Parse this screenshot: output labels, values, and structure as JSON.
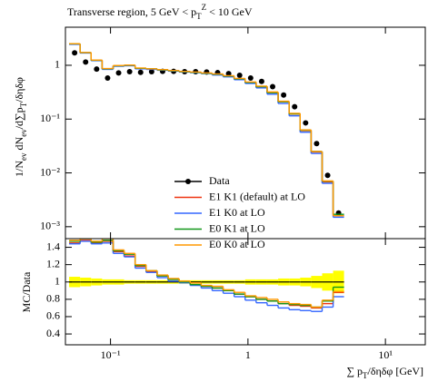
{
  "chart_data": [
    {
      "type": "histogram",
      "title": "Transverse region, 5 GeV < p_{T}^{Z} < 10 GeV",
      "y_label": "1/N_{ev} dN_{ev}/d∑p_{T}/δηδφ",
      "y_log": true,
      "bins": [
        0.05,
        0.0601,
        0.0723,
        0.0869,
        0.1045,
        0.1256,
        0.151,
        0.1816,
        0.2184,
        0.2626,
        0.3157,
        0.3796,
        0.4564,
        0.5488,
        0.6598,
        0.7933,
        0.9538,
        1.1468,
        1.3788,
        1.6578,
        1.9932,
        2.3965,
        2.8814,
        3.4644,
        4.1653,
        5.0
      ],
      "ylim": [
        0.0006,
        5.1
      ],
      "yticks": [
        {
          "value": 0.001,
          "label": "10⁻³"
        },
        {
          "value": 0.01,
          "label": "10⁻²"
        },
        {
          "value": 0.1,
          "label": "10⁻¹"
        },
        1
      ],
      "series": [
        {
          "name": "Data",
          "style": "points",
          "color": "#000000",
          "values": [
            1.7,
            1.15,
            0.85,
            0.58,
            0.72,
            0.76,
            0.74,
            0.76,
            0.77,
            0.77,
            0.76,
            0.76,
            0.75,
            0.73,
            0.7,
            0.65,
            0.58,
            0.5,
            0.4,
            0.28,
            0.17,
            0.085,
            0.035,
            0.009,
            0.0018
          ]
        },
        {
          "name": "E1 K1 (default) at LO",
          "style": "step",
          "color": "#ee3311",
          "values": [
            2.47,
            1.7,
            1.23,
            0.85,
            0.97,
            0.99,
            0.87,
            0.85,
            0.82,
            0.79,
            0.76,
            0.74,
            0.71,
            0.68,
            0.63,
            0.56,
            0.48,
            0.4,
            0.31,
            0.21,
            0.124,
            0.061,
            0.0245,
            0.0068,
            0.0016
          ]
        },
        {
          "name": "E1 K0 at LO",
          "style": "step",
          "color": "#3366ff",
          "values": [
            2.45,
            1.69,
            1.22,
            0.84,
            0.96,
            0.98,
            0.86,
            0.84,
            0.81,
            0.78,
            0.75,
            0.73,
            0.7,
            0.66,
            0.61,
            0.54,
            0.46,
            0.38,
            0.29,
            0.195,
            0.115,
            0.057,
            0.023,
            0.0064,
            0.0015
          ]
        },
        {
          "name": "E0 K1 at LO",
          "style": "step",
          "color": "#109618",
          "values": [
            2.5,
            1.72,
            1.24,
            0.86,
            0.98,
            1.0,
            0.88,
            0.86,
            0.82,
            0.79,
            0.76,
            0.74,
            0.71,
            0.68,
            0.63,
            0.56,
            0.48,
            0.4,
            0.31,
            0.21,
            0.125,
            0.062,
            0.025,
            0.007,
            0.0017
          ]
        },
        {
          "name": "E0 K0 at LO",
          "style": "step",
          "color": "#ff9900",
          "values": [
            2.52,
            1.73,
            1.25,
            0.87,
            0.99,
            1.01,
            0.89,
            0.86,
            0.83,
            0.8,
            0.77,
            0.75,
            0.72,
            0.69,
            0.64,
            0.57,
            0.49,
            0.41,
            0.32,
            0.215,
            0.128,
            0.063,
            0.025,
            0.0071,
            0.0016
          ]
        }
      ]
    },
    {
      "type": "histogram",
      "y_label": "MC/Data",
      "x_label": "∑ p_{T}/δηδφ [GeV]",
      "x_log": true,
      "bins": [
        0.05,
        0.0601,
        0.0723,
        0.0869,
        0.1045,
        0.1256,
        0.151,
        0.1816,
        0.2184,
        0.2626,
        0.3157,
        0.3796,
        0.4564,
        0.5488,
        0.6598,
        0.7933,
        0.9538,
        1.1468,
        1.3788,
        1.6578,
        1.9932,
        2.3965,
        2.8814,
        3.4644,
        4.1653,
        5.0
      ],
      "xlim": [
        0.047,
        19.5
      ],
      "xticks": [
        {
          "value": 0.1,
          "label": "10⁻¹"
        },
        1,
        {
          "value": 10,
          "label": "10¹"
        }
      ],
      "ylim": [
        0.275,
        1.5
      ],
      "yticks": [
        0.4,
        0.6,
        0.8,
        1,
        1.2,
        1.4
      ],
      "series": [
        {
          "name": "Data",
          "style": "band",
          "color": "#000000",
          "band_color": "#ffff00",
          "values": [
            1,
            1,
            1,
            1,
            1,
            1,
            1,
            1,
            1,
            1,
            1,
            1,
            1,
            1,
            1,
            1,
            1,
            1,
            1,
            1,
            1,
            1,
            1,
            1,
            1
          ],
          "errors": [
            0.06,
            0.05,
            0.04,
            0.03,
            0.03,
            0.02,
            0.02,
            0.02,
            0.02,
            0.02,
            0.02,
            0.02,
            0.02,
            0.02,
            0.02,
            0.02,
            0.03,
            0.03,
            0.03,
            0.04,
            0.04,
            0.05,
            0.07,
            0.1,
            0.13
          ]
        },
        {
          "name": "E1 K1 (default) at LO",
          "style": "step",
          "color": "#ee3311",
          "values": [
            1.45,
            1.48,
            1.45,
            1.47,
            1.35,
            1.3,
            1.18,
            1.12,
            1.07,
            1.03,
            1.0,
            0.97,
            0.95,
            0.93,
            0.9,
            0.86,
            0.83,
            0.8,
            0.78,
            0.75,
            0.73,
            0.72,
            0.7,
            0.75,
            0.88
          ]
        },
        {
          "name": "E1 K0 at LO",
          "style": "step",
          "color": "#3366ff",
          "values": [
            1.44,
            1.47,
            1.44,
            1.45,
            1.33,
            1.29,
            1.16,
            1.11,
            1.05,
            1.01,
            0.99,
            0.96,
            0.93,
            0.9,
            0.87,
            0.83,
            0.79,
            0.76,
            0.73,
            0.7,
            0.68,
            0.67,
            0.66,
            0.71,
            0.83
          ]
        },
        {
          "name": "E0 K1 at LO",
          "style": "step",
          "color": "#109618",
          "values": [
            1.47,
            1.5,
            1.46,
            1.48,
            1.36,
            1.32,
            1.19,
            1.13,
            1.07,
            1.03,
            1.0,
            0.97,
            0.95,
            0.93,
            0.9,
            0.86,
            0.83,
            0.8,
            0.78,
            0.75,
            0.74,
            0.73,
            0.71,
            0.78,
            0.94
          ]
        },
        {
          "name": "E0 K0 at LO",
          "style": "step",
          "color": "#ff9900",
          "values": [
            1.48,
            1.5,
            1.47,
            1.5,
            1.37,
            1.33,
            1.2,
            1.13,
            1.08,
            1.04,
            1.01,
            0.99,
            0.96,
            0.95,
            0.91,
            0.88,
            0.84,
            0.82,
            0.8,
            0.77,
            0.75,
            0.74,
            0.71,
            0.79,
            0.89
          ]
        }
      ]
    }
  ]
}
